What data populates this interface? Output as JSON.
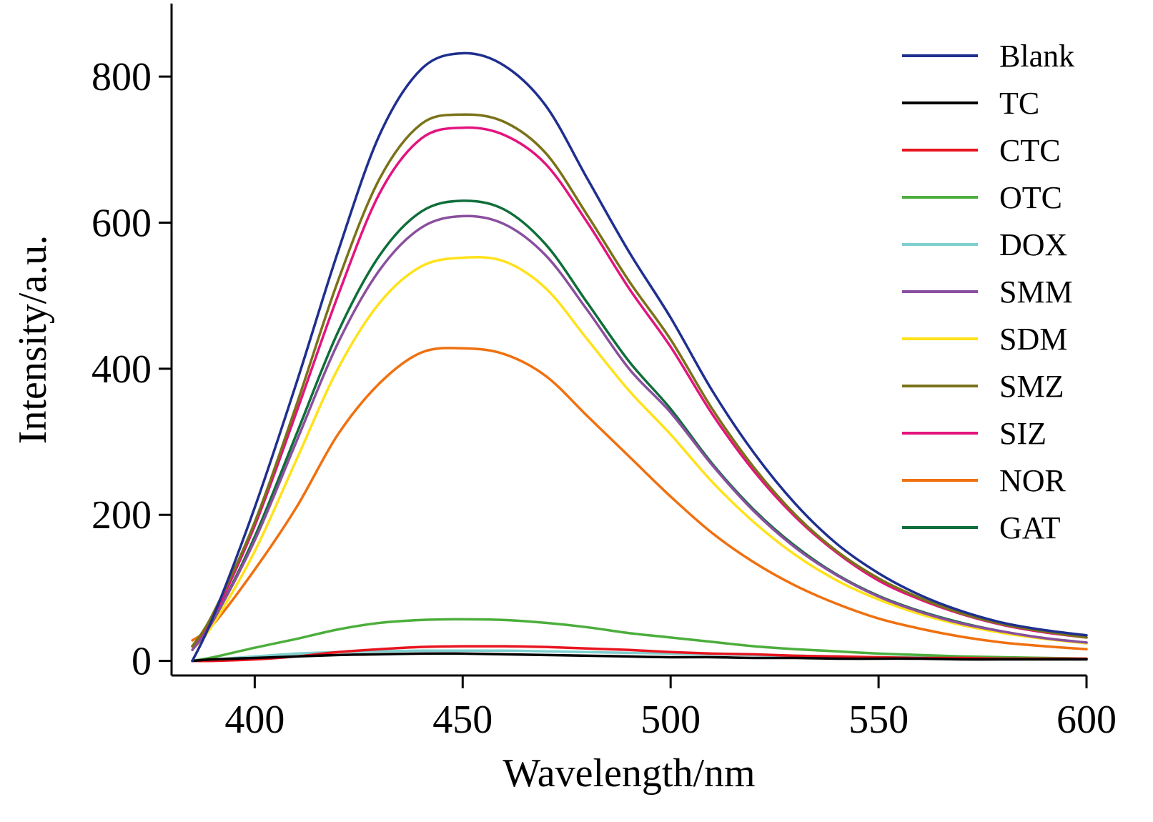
{
  "chart_data": {
    "type": "line",
    "title": "",
    "xlabel": "Wavelength/nm",
    "ylabel": "Intensity/a.u.",
    "xlim": [
      380,
      600
    ],
    "ylim": [
      -20,
      900
    ],
    "x_ticks": [
      400,
      450,
      500,
      550,
      600
    ],
    "y_ticks": [
      0,
      200,
      400,
      600,
      800
    ],
    "grid": false,
    "legend_position": "top-right",
    "x": [
      385,
      390,
      400,
      410,
      420,
      430,
      440,
      450,
      460,
      470,
      480,
      490,
      500,
      510,
      520,
      530,
      540,
      550,
      560,
      570,
      580,
      590,
      600
    ],
    "series": [
      {
        "name": "Blank",
        "color": "#1f2f8f",
        "values": [
          0,
          60,
          210,
          380,
          560,
          720,
          810,
          832,
          815,
          760,
          660,
          560,
          470,
          370,
          285,
          215,
          160,
          120,
          90,
          68,
          52,
          42,
          35
        ]
      },
      {
        "name": "TC",
        "color": "#000000",
        "values": [
          0,
          2,
          4,
          6,
          8,
          9,
          10,
          10,
          9,
          8,
          7,
          6,
          5,
          5,
          4,
          4,
          3,
          3,
          3,
          2,
          2,
          2,
          2
        ]
      },
      {
        "name": "CTC",
        "color": "#e8141f",
        "values": [
          0,
          0,
          2,
          6,
          12,
          16,
          19,
          20,
          20,
          19,
          17,
          15,
          12,
          10,
          9,
          7,
          6,
          5,
          4,
          4,
          3,
          3,
          3
        ]
      },
      {
        "name": "OTC",
        "color": "#4cae3c",
        "values": [
          0,
          5,
          18,
          30,
          43,
          52,
          56,
          57,
          56,
          52,
          46,
          38,
          32,
          26,
          20,
          16,
          13,
          10,
          8,
          6,
          5,
          4,
          3
        ]
      },
      {
        "name": "DOX",
        "color": "#7fcfcf",
        "values": [
          0,
          2,
          6,
          10,
          12,
          13,
          14,
          14,
          14,
          13,
          12,
          11,
          10,
          9,
          8,
          7,
          6,
          5,
          5,
          4,
          4,
          4,
          3
        ]
      },
      {
        "name": "SMM",
        "color": "#8a4f9e",
        "values": [
          15,
          55,
          165,
          300,
          435,
          535,
          593,
          609,
          598,
          555,
          480,
          400,
          340,
          268,
          205,
          155,
          117,
          88,
          67,
          51,
          40,
          31,
          25
        ]
      },
      {
        "name": "SDM",
        "color": "#ffe21a",
        "values": [
          15,
          50,
          150,
          275,
          400,
          490,
          540,
          552,
          547,
          510,
          440,
          370,
          310,
          245,
          190,
          145,
          110,
          84,
          64,
          49,
          38,
          30,
          24
        ]
      },
      {
        "name": "SMZ",
        "color": "#7a7218",
        "values": [
          20,
          65,
          190,
          350,
          520,
          660,
          735,
          748,
          738,
          695,
          610,
          520,
          440,
          345,
          265,
          200,
          150,
          113,
          86,
          65,
          50,
          40,
          32
        ]
      },
      {
        "name": "SIZ",
        "color": "#e3147e",
        "values": [
          20,
          60,
          185,
          340,
          500,
          640,
          715,
          730,
          720,
          680,
          600,
          510,
          430,
          338,
          260,
          197,
          148,
          110,
          84,
          64,
          49,
          39,
          32
        ]
      },
      {
        "name": "NOR",
        "color": "#f0700f",
        "values": [
          28,
          50,
          125,
          210,
          310,
          380,
          422,
          428,
          420,
          390,
          335,
          280,
          225,
          175,
          135,
          103,
          78,
          58,
          44,
          33,
          25,
          20,
          16
        ]
      },
      {
        "name": "GAT",
        "color": "#0f6e3a",
        "values": [
          20,
          55,
          170,
          310,
          450,
          555,
          615,
          630,
          618,
          570,
          490,
          410,
          345,
          270,
          207,
          157,
          118,
          89,
          68,
          52,
          40,
          31,
          25
        ]
      }
    ]
  }
}
